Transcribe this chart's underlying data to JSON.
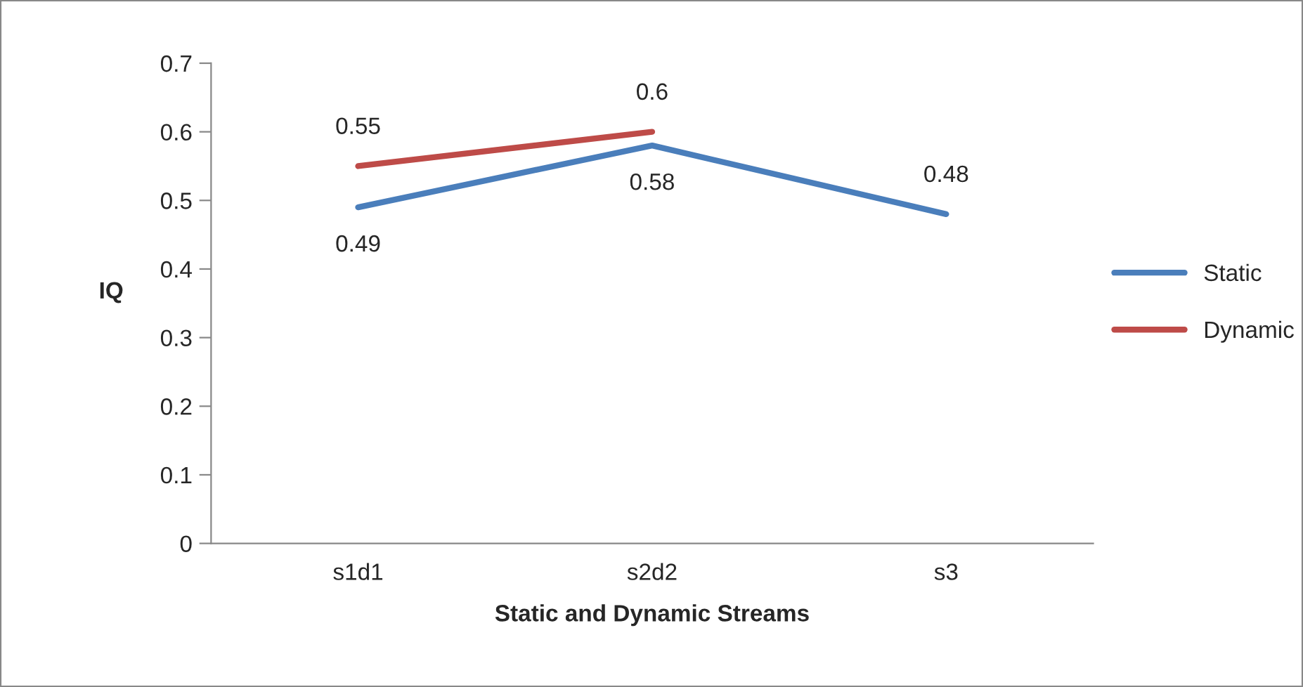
{
  "chart_data": {
    "type": "line",
    "xlabel": "Static and Dynamic Streams",
    "ylabel": "IQ",
    "categories": [
      "s1d1",
      "s2d2",
      "s3"
    ],
    "series": [
      {
        "name": "Static",
        "color": "#4a7ebb",
        "values": [
          0.49,
          0.58,
          0.48
        ]
      },
      {
        "name": "Dynamic",
        "color": "#be4b48",
        "values": [
          0.55,
          0.6,
          null
        ]
      }
    ],
    "ylim": [
      0,
      0.7
    ],
    "yticks": [
      0,
      0.1,
      0.2,
      0.3,
      0.4,
      0.5,
      0.6,
      0.7
    ],
    "data_labels": true,
    "legend": "right",
    "grid": false,
    "marker": "none",
    "line_style": "solid"
  }
}
